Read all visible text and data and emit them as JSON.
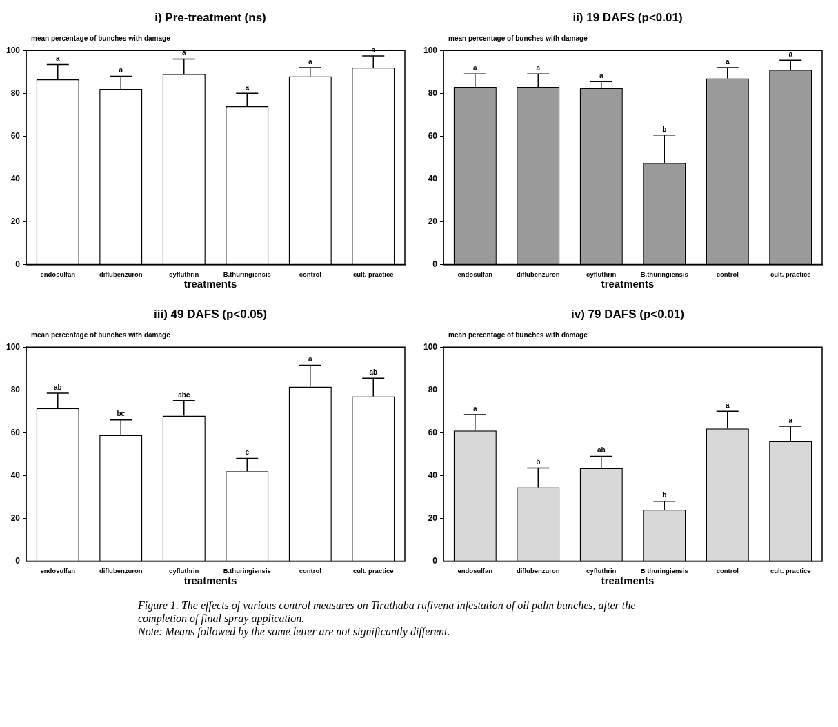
{
  "chart_data": [
    {
      "type": "bar",
      "title": "i) Pre-treatment (ns)",
      "ylabel": "mean percentage of bunches with damage",
      "xlabel": "treatments",
      "categories": [
        "endosulfan",
        "diflubenzuron",
        "cyfluthrin",
        "B.thuringiensis",
        "control",
        "cult. practice"
      ],
      "values": [
        86.5,
        82,
        89,
        74,
        88,
        92
      ],
      "errors": [
        [
          86.5,
          93.5
        ],
        [
          82,
          88
        ],
        [
          89,
          96
        ],
        [
          74,
          80
        ],
        [
          88,
          92
        ],
        [
          92,
          97.5
        ]
      ],
      "color": "#ffffff",
      "ylim": [
        0,
        100
      ],
      "yticks": [
        0,
        20,
        40,
        60,
        80,
        100
      ],
      "grid": false,
      "legend": false,
      "annotations": [
        {
          "text": "a",
          "x": "endosulfan",
          "y": 93.5
        },
        {
          "text": "a",
          "x": "diflubenzuron",
          "y": 88
        },
        {
          "text": "a",
          "x": "cyfluthrin",
          "y": 96
        },
        {
          "text": "a",
          "x": "B.thuringiensis",
          "y": 80
        },
        {
          "text": "a",
          "x": "control",
          "y": 92
        },
        {
          "text": "a",
          "x": "cult. practice",
          "y": 97.5
        }
      ]
    },
    {
      "type": "bar",
      "title": "ii) 19 DAFS (p<0.01)",
      "ylabel": "mean percentage of bunches with damage",
      "xlabel": "treatments",
      "categories": [
        "endosulfan",
        "diflubenzuron",
        "cyfluthrin",
        "B.thuringiensis",
        "control",
        "cult. practice"
      ],
      "values": [
        83,
        83,
        82.5,
        47.5,
        87,
        91
      ],
      "errors": [
        [
          83,
          89
        ],
        [
          83,
          89
        ],
        [
          82.5,
          85.5
        ],
        [
          47.5,
          60.5
        ],
        [
          87,
          92
        ],
        [
          91,
          95.5
        ]
      ],
      "color": "#9a9a9a",
      "ylim": [
        0,
        100
      ],
      "yticks": [
        0,
        20,
        40,
        60,
        80,
        100
      ],
      "grid": false,
      "legend": false,
      "annotations": [
        {
          "text": "a",
          "x": "endosulfan",
          "y": 89
        },
        {
          "text": "a",
          "x": "diflubenzuron",
          "y": 89
        },
        {
          "text": "a",
          "x": "cyfluthrin",
          "y": 85.5
        },
        {
          "text": "b",
          "x": "B.thuringiensis",
          "y": 60.5
        },
        {
          "text": "a",
          "x": "control",
          "y": 92
        },
        {
          "text": "a",
          "x": "cult. practice",
          "y": 95.5
        }
      ]
    },
    {
      "type": "bar",
      "title": "iii) 49 DAFS (p<0.05)",
      "ylabel": "mean percentage of bunches with damage",
      "xlabel": "treatments",
      "categories": [
        "endosulfan",
        "diflubenzuron",
        "cyfluthrin",
        "B.thuringiensis",
        "control",
        "cult. practice"
      ],
      "values": [
        71.5,
        59,
        68,
        42,
        81.5,
        77
      ],
      "errors": [
        [
          71.5,
          78.5
        ],
        [
          59,
          66
        ],
        [
          68,
          75
        ],
        [
          42,
          48
        ],
        [
          81.5,
          91.5
        ],
        [
          77,
          85.5
        ]
      ],
      "color": "#ffffff",
      "ylim": [
        0,
        100
      ],
      "yticks": [
        0,
        20,
        40,
        60,
        80,
        100
      ],
      "grid": false,
      "legend": false,
      "annotations": [
        {
          "text": "ab",
          "x": "endosulfan",
          "y": 78.5
        },
        {
          "text": "bc",
          "x": "diflubenzuron",
          "y": 66
        },
        {
          "text": "abc",
          "x": "cyfluthrin",
          "y": 75
        },
        {
          "text": "c",
          "x": "B.thuringiensis",
          "y": 48
        },
        {
          "text": "a",
          "x": "control",
          "y": 91.5
        },
        {
          "text": "ab",
          "x": "cult. practice",
          "y": 85.5
        }
      ]
    },
    {
      "type": "bar",
      "title": "iv) 79 DAFS (p<0.01)",
      "ylabel": "mean percentage of bunches with damage",
      "xlabel": "treatments",
      "categories": [
        "endosulfan",
        "diflubenzuron",
        "cyfluthrin",
        "B thuringiensis",
        "control",
        "cult. practice"
      ],
      "values": [
        61,
        34.5,
        43.5,
        24,
        62,
        56
      ],
      "errors": [
        [
          61,
          68.5
        ],
        [
          34.5,
          43.5
        ],
        [
          43.5,
          49
        ],
        [
          24,
          28
        ],
        [
          62,
          70
        ],
        [
          56,
          63
        ]
      ],
      "color": "#d8d8d8",
      "ylim": [
        0,
        100
      ],
      "yticks": [
        0,
        20,
        40,
        60,
        80,
        100
      ],
      "grid": false,
      "legend": false,
      "annotations": [
        {
          "text": "a",
          "x": "endosulfan",
          "y": 68.5
        },
        {
          "text": "b",
          "x": "diflubenzuron",
          "y": 43.5
        },
        {
          "text": "ab",
          "x": "cyfluthrin",
          "y": 49
        },
        {
          "text": "b",
          "x": "B thuringiensis",
          "y": 28
        },
        {
          "text": "a",
          "x": "control",
          "y": 70
        },
        {
          "text": "a",
          "x": "cult. practice",
          "y": 63
        },
        "Figure 1. The effects of various control measures on Tirathaba rufivena infestation of oil palm bunches, after the completion of final spray application.",
        "Note: Means followed by the same letter are not significantly different."
      ]
    }
  ]
}
